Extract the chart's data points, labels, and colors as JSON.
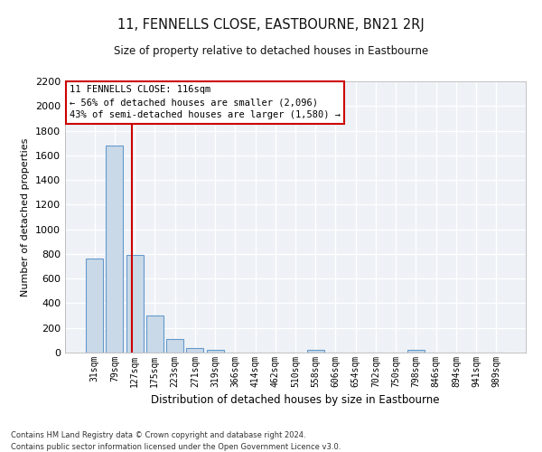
{
  "title": "11, FENNELLS CLOSE, EASTBOURNE, BN21 2RJ",
  "subtitle": "Size of property relative to detached houses in Eastbourne",
  "xlabel": "Distribution of detached houses by size in Eastbourne",
  "ylabel": "Number of detached properties",
  "categories": [
    "31sqm",
    "79sqm",
    "127sqm",
    "175sqm",
    "223sqm",
    "271sqm",
    "319sqm",
    "366sqm",
    "414sqm",
    "462sqm",
    "510sqm",
    "558sqm",
    "606sqm",
    "654sqm",
    "702sqm",
    "750sqm",
    "798sqm",
    "846sqm",
    "894sqm",
    "941sqm",
    "989sqm"
  ],
  "values": [
    760,
    1680,
    790,
    300,
    110,
    40,
    25,
    0,
    0,
    0,
    0,
    25,
    0,
    0,
    0,
    0,
    25,
    0,
    0,
    0,
    0
  ],
  "bar_color": "#c9d9e8",
  "bar_edgecolor": "#6699cc",
  "vline_x": 1.85,
  "vline_color": "#cc0000",
  "ylim": [
    0,
    2200
  ],
  "yticks": [
    0,
    200,
    400,
    600,
    800,
    1000,
    1200,
    1400,
    1600,
    1800,
    2000,
    2200
  ],
  "annotation_text": "11 FENNELLS CLOSE: 116sqm\n← 56% of detached houses are smaller (2,096)\n43% of semi-detached houses are larger (1,580) →",
  "annotation_box_color": "#ffffff",
  "annotation_box_edgecolor": "#cc0000",
  "background_color": "#eef2f7",
  "footer_line1": "Contains HM Land Registry data © Crown copyright and database right 2024.",
  "footer_line2": "Contains public sector information licensed under the Open Government Licence v3.0."
}
